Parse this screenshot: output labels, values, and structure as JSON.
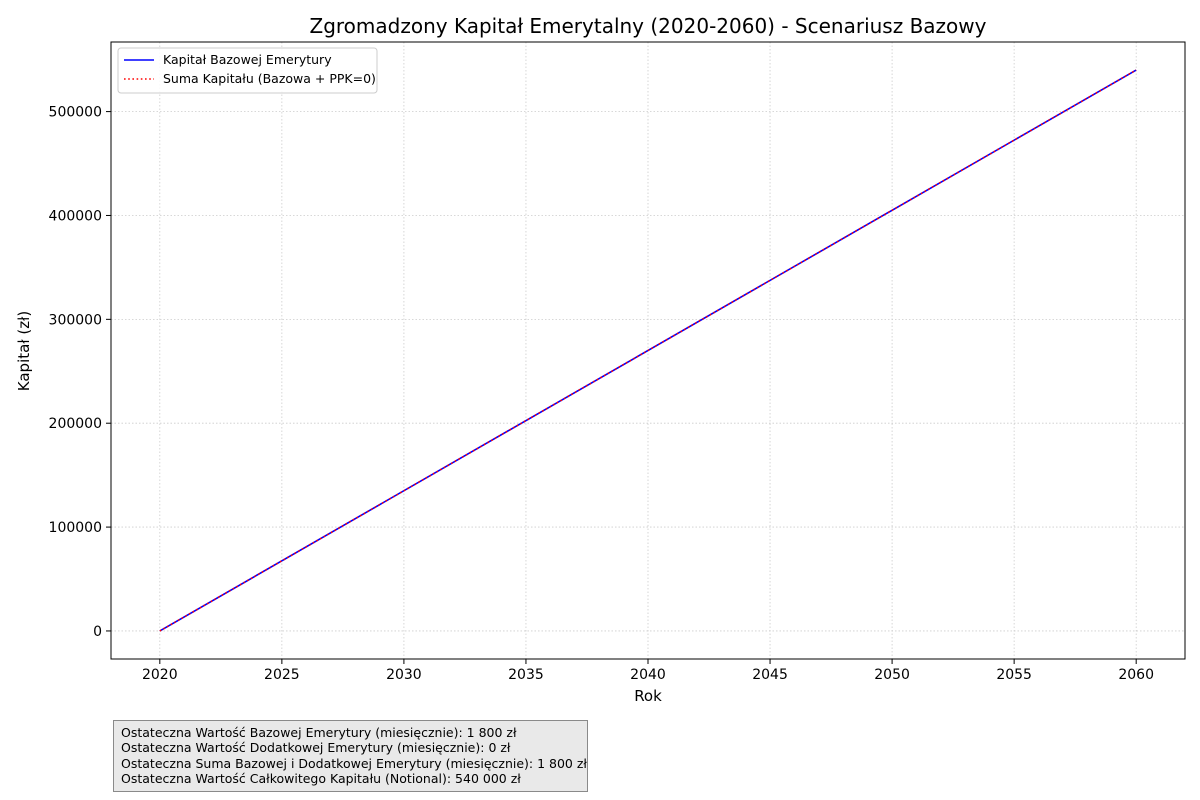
{
  "chart_data": {
    "type": "line",
    "title": "Zgromadzony Kapitał Emerytalny (2020-2060) - Scenariusz Bazowy",
    "xlabel": "Rok",
    "ylabel": "Kapitał (zł)",
    "xlim": [
      2018,
      2062
    ],
    "ylim": [
      -27000,
      567000
    ],
    "x_ticks": [
      2020,
      2025,
      2030,
      2035,
      2040,
      2045,
      2050,
      2055,
      2060
    ],
    "x_tick_labels": [
      "2020",
      "2025",
      "2030",
      "2035",
      "2040",
      "2045",
      "2050",
      "2055",
      "2060"
    ],
    "y_ticks": [
      0,
      100000,
      200000,
      300000,
      400000,
      500000
    ],
    "y_tick_labels": [
      "0",
      "100000",
      "200000",
      "300000",
      "400000",
      "500000"
    ],
    "grid": true,
    "legend_position": "top-left",
    "series": [
      {
        "name": "Kapitał Bazowej Emerytury",
        "style": "solid",
        "color": "#0000ff",
        "x": [
          2020,
          2060
        ],
        "y": [
          0,
          540000
        ]
      },
      {
        "name": "Suma Kapitału (Bazowa + PPK=0)",
        "style": "dotted",
        "color": "#ff0000",
        "x": [
          2020,
          2060
        ],
        "y": [
          0,
          540000
        ]
      }
    ]
  },
  "info_box": {
    "lines": [
      "Ostateczna Wartość Bazowej Emerytury (miesięcznie): 1 800 zł",
      "Ostateczna Wartość Dodatkowej Emerytury (miesięcznie): 0 zł",
      "Ostateczna Suma Bazowej i Dodatkowej Emerytury (miesięcznie): 1 800 zł",
      "Ostateczna Wartość Całkowitego Kapitału (Notional): 540 000 zł"
    ]
  }
}
